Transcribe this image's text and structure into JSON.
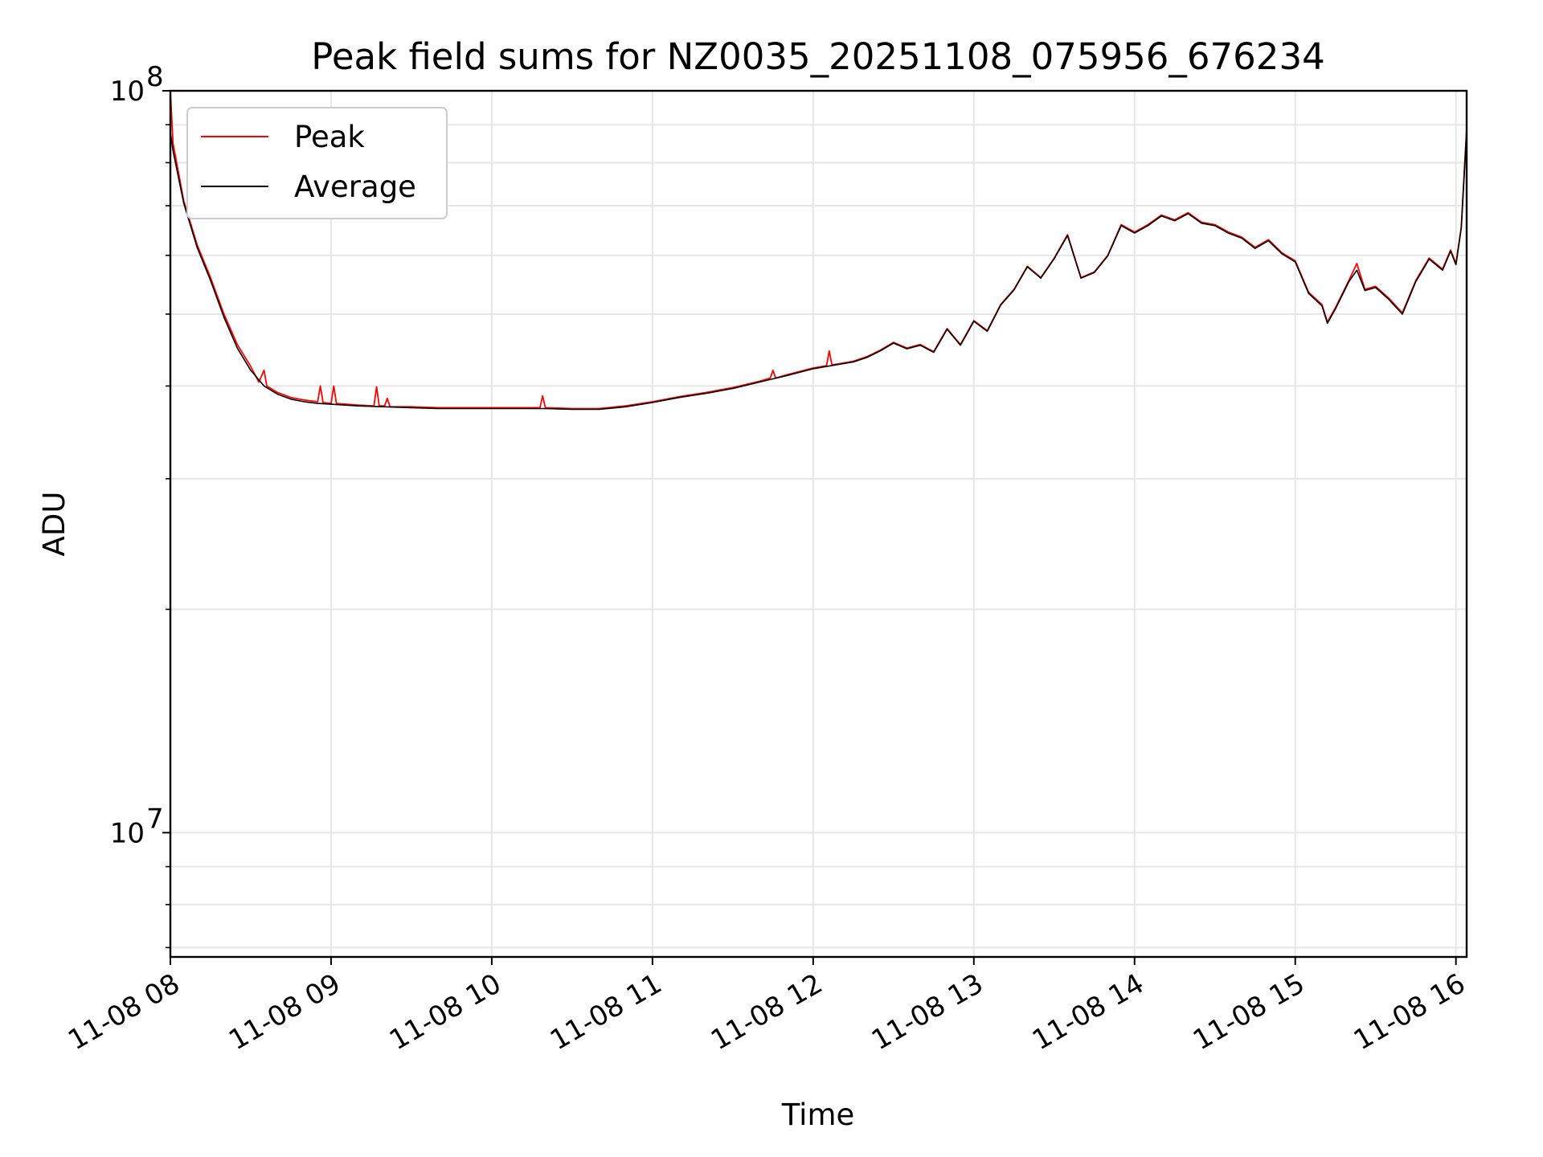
{
  "chart_data": {
    "type": "line",
    "title": "Peak field sums for NZ0035_20251108_075956_676234",
    "xlabel": "Time",
    "ylabel": "ADU",
    "y_scale": "log",
    "x_ticks": [
      "11-08 08",
      "11-08 09",
      "11-08 10",
      "11-08 11",
      "11-08 12",
      "11-08 13",
      "11-08 14",
      "11-08 15",
      "11-08 16"
    ],
    "y_ticks": [
      {
        "value": 10000000,
        "base": "10",
        "exp": "7"
      },
      {
        "value": 100000000,
        "base": "10",
        "exp": "8"
      }
    ],
    "xlim": [
      "2025-11-08 08:00",
      "2025-11-08 16:04"
    ],
    "ylim": [
      6800000,
      100000000
    ],
    "grid": true,
    "legend_position": "upper-left",
    "series": [
      {
        "name": "Peak",
        "color": "#ff0000",
        "points": [
          [
            "2025-11-08 08:00",
            100000000
          ],
          [
            "2025-11-08 08:01",
            85000000
          ],
          [
            "2025-11-08 08:05",
            71000000
          ],
          [
            "2025-11-08 08:10",
            62000000
          ],
          [
            "2025-11-08 08:15",
            56000000
          ],
          [
            "2025-11-08 08:20",
            50000000
          ],
          [
            "2025-11-08 08:25",
            45500000
          ],
          [
            "2025-11-08 08:30",
            42500000
          ],
          [
            "2025-11-08 08:33",
            40500000
          ],
          [
            "2025-11-08 08:35",
            42000000
          ],
          [
            "2025-11-08 08:36",
            40000000
          ],
          [
            "2025-11-08 08:40",
            39200000
          ],
          [
            "2025-11-08 08:45",
            38600000
          ],
          [
            "2025-11-08 08:50",
            38300000
          ],
          [
            "2025-11-08 08:55",
            38100000
          ],
          [
            "2025-11-08 08:56",
            40000000
          ],
          [
            "2025-11-08 08:57",
            38000000
          ],
          [
            "2025-11-08 09:00",
            37900000
          ],
          [
            "2025-11-08 09:01",
            40000000
          ],
          [
            "2025-11-08 09:02",
            37900000
          ],
          [
            "2025-11-08 09:10",
            37700000
          ],
          [
            "2025-11-08 09:16",
            37600000
          ],
          [
            "2025-11-08 09:17",
            39900000
          ],
          [
            "2025-11-08 09:18",
            37600000
          ],
          [
            "2025-11-08 09:20",
            37600000
          ],
          [
            "2025-11-08 09:21",
            38500000
          ],
          [
            "2025-11-08 09:22",
            37500000
          ],
          [
            "2025-11-08 09:30",
            37500000
          ],
          [
            "2025-11-08 09:40",
            37400000
          ],
          [
            "2025-11-08 09:50",
            37400000
          ],
          [
            "2025-11-08 10:00",
            37400000
          ],
          [
            "2025-11-08 10:10",
            37400000
          ],
          [
            "2025-11-08 10:18",
            37400000
          ],
          [
            "2025-11-08 10:19",
            38800000
          ],
          [
            "2025-11-08 10:20",
            37400000
          ],
          [
            "2025-11-08 10:30",
            37300000
          ],
          [
            "2025-11-08 10:40",
            37300000
          ],
          [
            "2025-11-08 10:50",
            37600000
          ],
          [
            "2025-11-08 11:00",
            38100000
          ],
          [
            "2025-11-08 11:10",
            38700000
          ],
          [
            "2025-11-08 11:20",
            39200000
          ],
          [
            "2025-11-08 11:30",
            39800000
          ],
          [
            "2025-11-08 11:40",
            40600000
          ],
          [
            "2025-11-08 11:44",
            41000000
          ],
          [
            "2025-11-08 11:45",
            42000000
          ],
          [
            "2025-11-08 11:46",
            41000000
          ],
          [
            "2025-11-08 11:50",
            41400000
          ],
          [
            "2025-11-08 12:00",
            42300000
          ],
          [
            "2025-11-08 12:05",
            42600000
          ],
          [
            "2025-11-08 12:06",
            44600000
          ],
          [
            "2025-11-08 12:07",
            42700000
          ],
          [
            "2025-11-08 12:15",
            43200000
          ],
          [
            "2025-11-08 12:20",
            43800000
          ],
          [
            "2025-11-08 12:25",
            44700000
          ],
          [
            "2025-11-08 12:30",
            45800000
          ],
          [
            "2025-11-08 12:35",
            45000000
          ],
          [
            "2025-11-08 12:40",
            45500000
          ],
          [
            "2025-11-08 12:45",
            44500000
          ],
          [
            "2025-11-08 12:50",
            47800000
          ],
          [
            "2025-11-08 12:55",
            45500000
          ],
          [
            "2025-11-08 13:00",
            49000000
          ],
          [
            "2025-11-08 13:05",
            47500000
          ],
          [
            "2025-11-08 13:10",
            51500000
          ],
          [
            "2025-11-08 13:15",
            54000000
          ],
          [
            "2025-11-08 13:20",
            58000000
          ],
          [
            "2025-11-08 13:25",
            56000000
          ],
          [
            "2025-11-08 13:30",
            59500000
          ],
          [
            "2025-11-08 13:35",
            64000000
          ],
          [
            "2025-11-08 13:40",
            56000000
          ],
          [
            "2025-11-08 13:45",
            57000000
          ],
          [
            "2025-11-08 13:50",
            60000000
          ],
          [
            "2025-11-08 13:55",
            66000000
          ],
          [
            "2025-11-08 14:00",
            64500000
          ],
          [
            "2025-11-08 14:05",
            66000000
          ],
          [
            "2025-11-08 14:10",
            68000000
          ],
          [
            "2025-11-08 14:15",
            67000000
          ],
          [
            "2025-11-08 14:20",
            68500000
          ],
          [
            "2025-11-08 14:25",
            66500000
          ],
          [
            "2025-11-08 14:30",
            66000000
          ],
          [
            "2025-11-08 14:35",
            64500000
          ],
          [
            "2025-11-08 14:40",
            63500000
          ],
          [
            "2025-11-08 14:45",
            61500000
          ],
          [
            "2025-11-08 14:50",
            63000000
          ],
          [
            "2025-11-08 14:55",
            60500000
          ],
          [
            "2025-11-08 15:00",
            59000000
          ],
          [
            "2025-11-08 15:05",
            53500000
          ],
          [
            "2025-11-08 15:10",
            51500000
          ],
          [
            "2025-11-08 15:12",
            48800000
          ],
          [
            "2025-11-08 15:15",
            51000000
          ],
          [
            "2025-11-08 15:20",
            55500000
          ],
          [
            "2025-11-08 15:23",
            58500000
          ],
          [
            "2025-11-08 15:26",
            54000000
          ],
          [
            "2025-11-08 15:30",
            54500000
          ],
          [
            "2025-11-08 15:35",
            52500000
          ],
          [
            "2025-11-08 15:40",
            50200000
          ],
          [
            "2025-11-08 15:45",
            55500000
          ],
          [
            "2025-11-08 15:50",
            59500000
          ],
          [
            "2025-11-08 15:55",
            57500000
          ],
          [
            "2025-11-08 15:58",
            61000000
          ],
          [
            "2025-11-08 16:00",
            58500000
          ],
          [
            "2025-11-08 16:02",
            65500000
          ],
          [
            "2025-11-08 16:04",
            89000000
          ]
        ]
      },
      {
        "name": "Average",
        "color": "#000000",
        "points": [
          [
            "2025-11-08 08:00",
            88000000
          ],
          [
            "2025-11-08 08:01",
            83000000
          ],
          [
            "2025-11-08 08:05",
            70500000
          ],
          [
            "2025-11-08 08:10",
            61500000
          ],
          [
            "2025-11-08 08:15",
            55500000
          ],
          [
            "2025-11-08 08:20",
            49500000
          ],
          [
            "2025-11-08 08:25",
            45000000
          ],
          [
            "2025-11-08 08:30",
            42000000
          ],
          [
            "2025-11-08 08:35",
            40000000
          ],
          [
            "2025-11-08 08:40",
            39000000
          ],
          [
            "2025-11-08 08:45",
            38400000
          ],
          [
            "2025-11-08 08:50",
            38100000
          ],
          [
            "2025-11-08 08:55",
            37900000
          ],
          [
            "2025-11-08 09:00",
            37800000
          ],
          [
            "2025-11-08 09:10",
            37600000
          ],
          [
            "2025-11-08 09:20",
            37500000
          ],
          [
            "2025-11-08 09:30",
            37400000
          ],
          [
            "2025-11-08 09:40",
            37300000
          ],
          [
            "2025-11-08 09:50",
            37300000
          ],
          [
            "2025-11-08 10:00",
            37300000
          ],
          [
            "2025-11-08 10:10",
            37300000
          ],
          [
            "2025-11-08 10:20",
            37300000
          ],
          [
            "2025-11-08 10:30",
            37200000
          ],
          [
            "2025-11-08 10:40",
            37200000
          ],
          [
            "2025-11-08 10:50",
            37500000
          ],
          [
            "2025-11-08 11:00",
            38000000
          ],
          [
            "2025-11-08 11:10",
            38600000
          ],
          [
            "2025-11-08 11:20",
            39100000
          ],
          [
            "2025-11-08 11:30",
            39700000
          ],
          [
            "2025-11-08 11:40",
            40500000
          ],
          [
            "2025-11-08 11:50",
            41300000
          ],
          [
            "2025-11-08 12:00",
            42200000
          ],
          [
            "2025-11-08 12:05",
            42500000
          ],
          [
            "2025-11-08 12:15",
            43100000
          ],
          [
            "2025-11-08 12:20",
            43700000
          ],
          [
            "2025-11-08 12:25",
            44600000
          ],
          [
            "2025-11-08 12:30",
            45700000
          ],
          [
            "2025-11-08 12:35",
            44900000
          ],
          [
            "2025-11-08 12:40",
            45400000
          ],
          [
            "2025-11-08 12:45",
            44400000
          ],
          [
            "2025-11-08 12:50",
            47700000
          ],
          [
            "2025-11-08 12:55",
            45400000
          ],
          [
            "2025-11-08 13:00",
            48900000
          ],
          [
            "2025-11-08 13:05",
            47400000
          ],
          [
            "2025-11-08 13:10",
            51400000
          ],
          [
            "2025-11-08 13:15",
            53900000
          ],
          [
            "2025-11-08 13:20",
            57900000
          ],
          [
            "2025-11-08 13:25",
            55900000
          ],
          [
            "2025-11-08 13:30",
            59400000
          ],
          [
            "2025-11-08 13:35",
            63800000
          ],
          [
            "2025-11-08 13:40",
            55900000
          ],
          [
            "2025-11-08 13:45",
            56900000
          ],
          [
            "2025-11-08 13:50",
            59900000
          ],
          [
            "2025-11-08 13:55",
            65800000
          ],
          [
            "2025-11-08 14:00",
            64300000
          ],
          [
            "2025-11-08 14:05",
            65800000
          ],
          [
            "2025-11-08 14:10",
            67800000
          ],
          [
            "2025-11-08 14:15",
            66800000
          ],
          [
            "2025-11-08 14:20",
            68300000
          ],
          [
            "2025-11-08 14:25",
            66300000
          ],
          [
            "2025-11-08 14:30",
            65800000
          ],
          [
            "2025-11-08 14:35",
            64300000
          ],
          [
            "2025-11-08 14:40",
            63300000
          ],
          [
            "2025-11-08 14:45",
            61300000
          ],
          [
            "2025-11-08 14:50",
            62800000
          ],
          [
            "2025-11-08 14:55",
            60300000
          ],
          [
            "2025-11-08 15:00",
            58800000
          ],
          [
            "2025-11-08 15:05",
            53300000
          ],
          [
            "2025-11-08 15:10",
            51300000
          ],
          [
            "2025-11-08 15:12",
            48600000
          ],
          [
            "2025-11-08 15:15",
            50800000
          ],
          [
            "2025-11-08 15:20",
            55300000
          ],
          [
            "2025-11-08 15:23",
            57300000
          ],
          [
            "2025-11-08 15:26",
            53800000
          ],
          [
            "2025-11-08 15:30",
            54300000
          ],
          [
            "2025-11-08 15:35",
            52300000
          ],
          [
            "2025-11-08 15:40",
            50000000
          ],
          [
            "2025-11-08 15:45",
            55300000
          ],
          [
            "2025-11-08 15:50",
            59300000
          ],
          [
            "2025-11-08 15:55",
            57300000
          ],
          [
            "2025-11-08 15:58",
            60800000
          ],
          [
            "2025-11-08 16:00",
            58300000
          ],
          [
            "2025-11-08 16:02",
            65300000
          ],
          [
            "2025-11-08 16:04",
            88500000
          ]
        ]
      }
    ]
  }
}
